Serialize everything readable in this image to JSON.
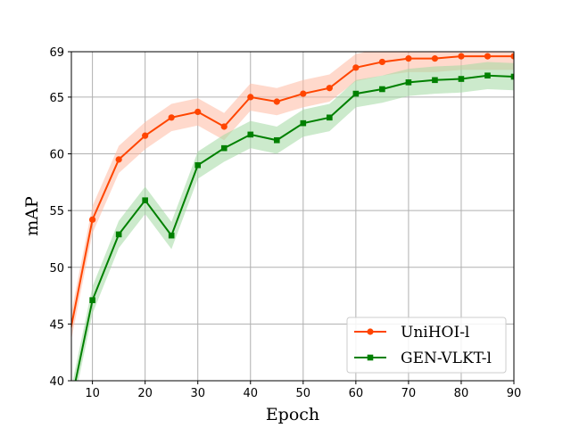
{
  "chart_data": {
    "type": "line",
    "xlabel": "Epoch",
    "ylabel": "mAP",
    "xlim": [
      6,
      90
    ],
    "ylim": [
      40,
      69
    ],
    "xticks": [
      10,
      20,
      30,
      40,
      50,
      60,
      70,
      80,
      90
    ],
    "yticks": [
      40,
      45,
      50,
      55,
      60,
      65,
      69
    ],
    "grid": true,
    "legend_position": "lower-right",
    "series": [
      {
        "name": "UniHOI-l",
        "color": "#ff4500",
        "band_color": "#ffb9a3",
        "marker": "circle",
        "x": [
          5,
          10,
          15,
          20,
          25,
          30,
          35,
          40,
          45,
          50,
          55,
          60,
          65,
          70,
          75,
          80,
          85,
          90
        ],
        "y": [
          42.5,
          54.2,
          59.5,
          61.6,
          63.2,
          63.7,
          62.4,
          65.0,
          64.6,
          65.3,
          65.8,
          67.6,
          68.1,
          68.4,
          68.4,
          68.6,
          68.6,
          68.6
        ],
        "band": 1.2
      },
      {
        "name": "GEN-VLKT-l",
        "color": "#008000",
        "band_color": "#a3d9a3",
        "marker": "square",
        "x": [
          5,
          10,
          15,
          20,
          25,
          30,
          35,
          40,
          45,
          50,
          55,
          60,
          65,
          70,
          75,
          80,
          85,
          90
        ],
        "y": [
          36.0,
          47.1,
          52.9,
          55.9,
          52.8,
          59.0,
          60.5,
          61.7,
          61.2,
          62.7,
          63.2,
          65.3,
          65.7,
          66.3,
          66.5,
          66.6,
          66.9,
          66.8
        ],
        "band": 1.2
      }
    ]
  }
}
